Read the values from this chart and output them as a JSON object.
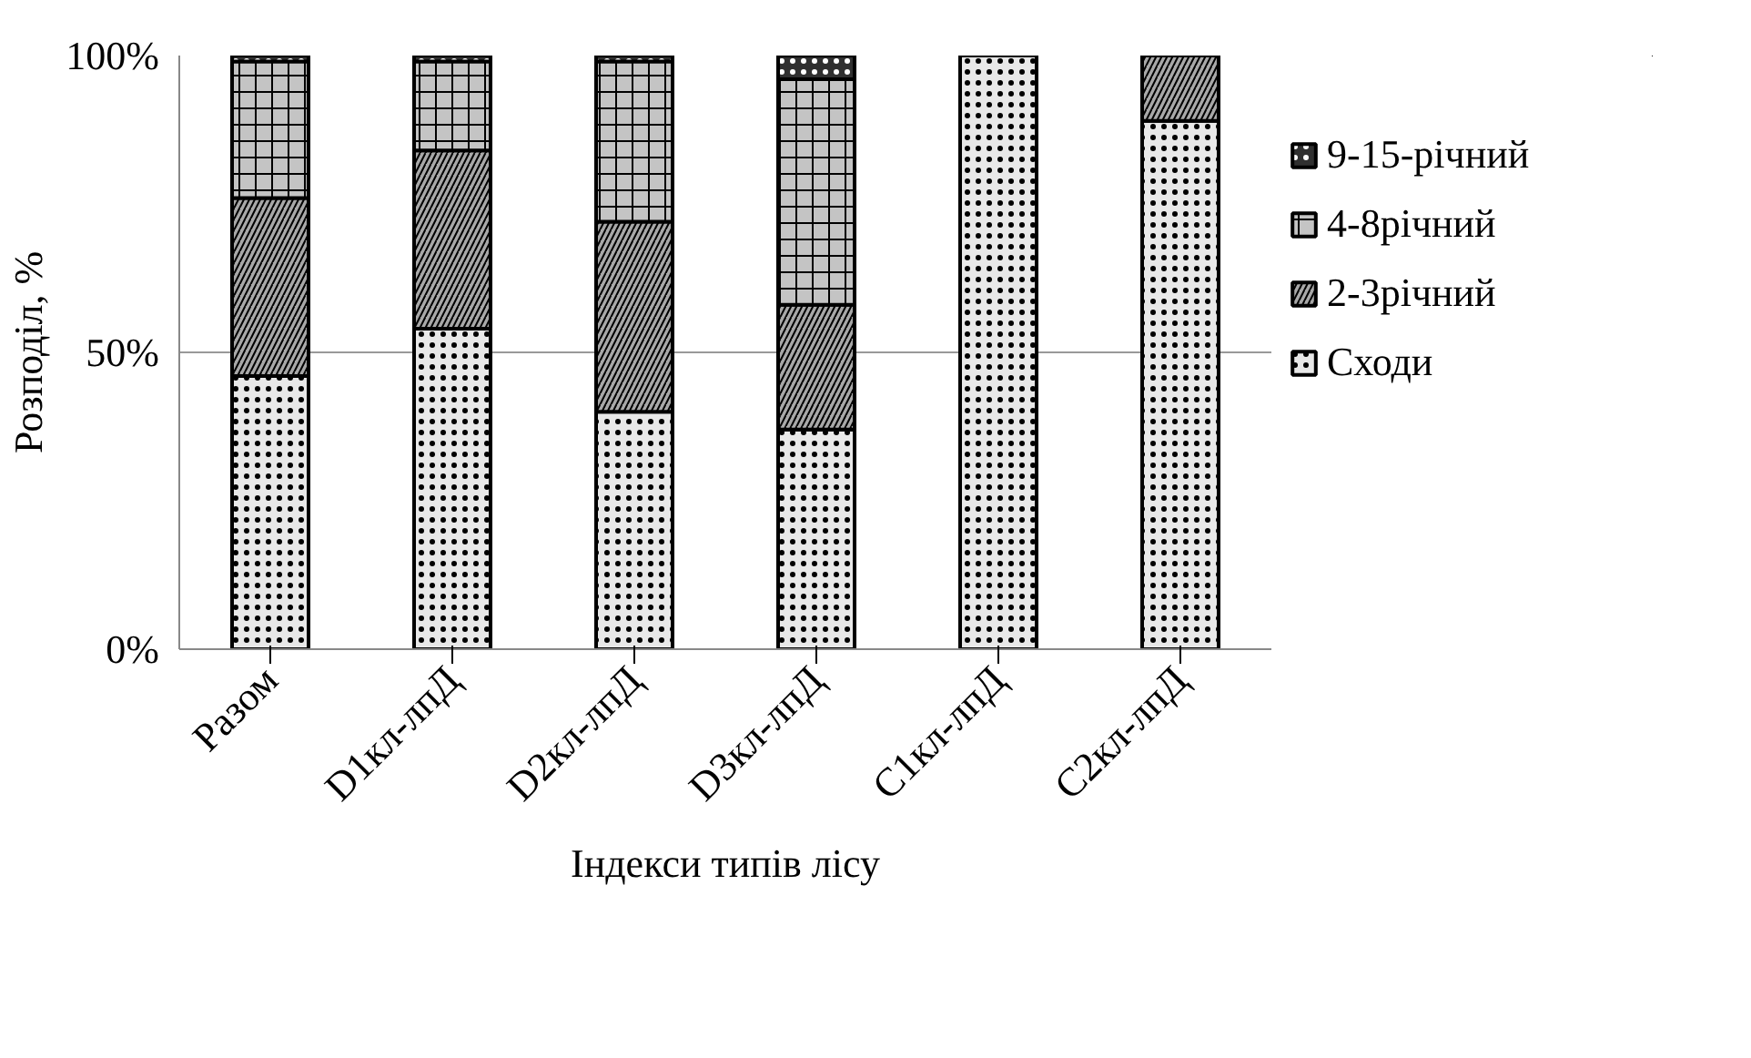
{
  "chart_data": {
    "type": "bar",
    "stacked": true,
    "xlabel": "Індекси типів лісу",
    "ylabel": "Розподіл, %",
    "categories": [
      "Разом",
      "D1кл-лпД",
      "D2кл-лпД",
      "D3кл-лпД",
      "C1кл-лпД",
      "C2кл-лпД"
    ],
    "series": [
      {
        "name": "Сходи",
        "color": "#e8e8e8",
        "values": [
          46,
          54,
          40,
          37,
          100,
          89
        ]
      },
      {
        "name": "2-3річний",
        "color": "#a8a8a8",
        "values": [
          30,
          30,
          32,
          21,
          0,
          11
        ]
      },
      {
        "name": "4-8річний",
        "color": "#c4c4c4",
        "values": [
          23,
          15,
          27,
          38,
          0,
          0
        ]
      },
      {
        "name": "9-15-річний",
        "color": "#303030",
        "values": [
          1,
          1,
          1,
          4,
          0,
          0
        ]
      }
    ],
    "ylim": [
      0,
      100
    ],
    "yticks": [
      {
        "value": 0,
        "label": "0%"
      },
      {
        "value": 50,
        "label": "50%"
      },
      {
        "value": 100,
        "label": "100%"
      }
    ],
    "grid": "y",
    "legend": "right"
  }
}
